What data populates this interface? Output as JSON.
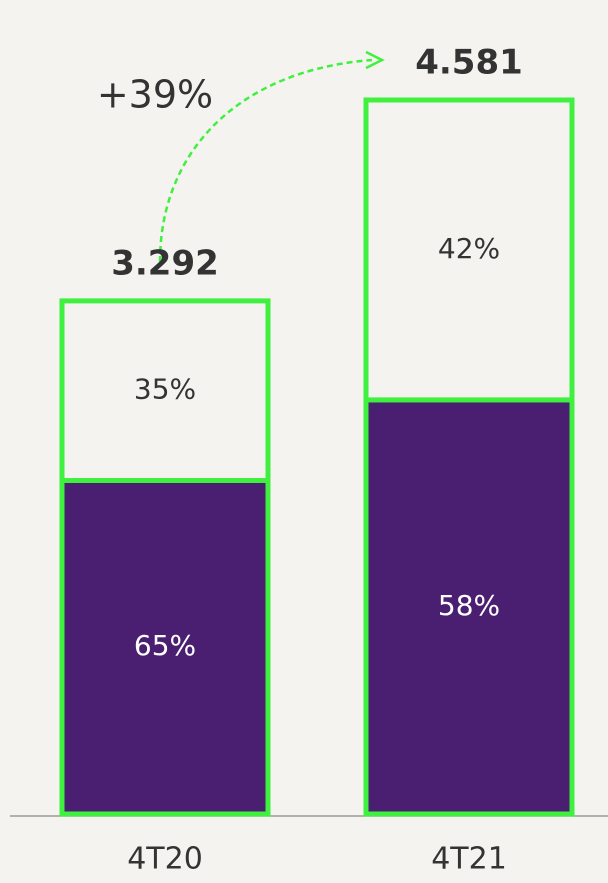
{
  "chart_data": {
    "type": "stacked_bar",
    "categories": [
      "4T20",
      "4T21"
    ],
    "series": [
      {
        "color": "#4a1f72",
        "values": [
          65,
          58
        ],
        "value_labels": [
          "65%",
          "58%"
        ]
      },
      {
        "color": "#f5f3f0",
        "values": [
          35,
          42
        ],
        "value_labels": [
          "35%",
          "42%"
        ]
      }
    ],
    "totals": {
      "values": [
        3292,
        4581
      ],
      "value_labels": [
        "3.292",
        "4.581"
      ]
    },
    "border_color": "#3ff03f",
    "annotation": "+39%"
  }
}
